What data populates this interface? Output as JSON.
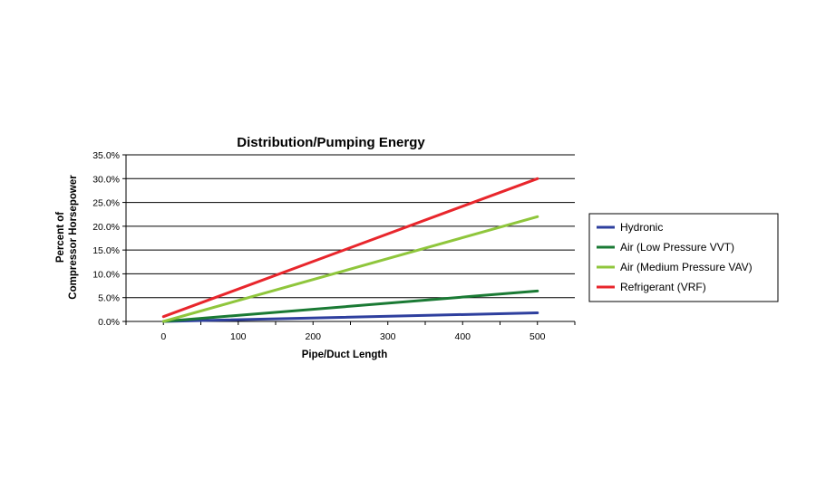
{
  "chart_data": {
    "type": "line",
    "title": "Distribution/Pumping Energy",
    "xlabel": "Pipe/Duct Length",
    "ylabel_lines": [
      "Percent of",
      "Compressor Horsepower"
    ],
    "xlim": [
      -50,
      550
    ],
    "ylim": [
      0,
      35
    ],
    "x_ticks": [
      "0",
      "100",
      "200",
      "300",
      "400",
      "500"
    ],
    "x_tick_values": [
      0,
      100,
      200,
      300,
      400,
      500
    ],
    "y_ticks": [
      "0.0%",
      "5.0%",
      "10.0%",
      "15.0%",
      "20.0%",
      "25.0%",
      "30.0%",
      "35.0%"
    ],
    "y_tick_values": [
      0,
      5,
      10,
      15,
      20,
      25,
      30,
      35
    ],
    "grid": "horizontal",
    "legend_position": "right",
    "series": [
      {
        "name": "Hydronic",
        "color": "#2e3f9e",
        "x": [
          0,
          500
        ],
        "y": [
          0.0,
          1.8
        ]
      },
      {
        "name": "Air (Low Pressure VVT)",
        "color": "#1a7a34",
        "x": [
          0,
          500
        ],
        "y": [
          0.0,
          6.4
        ]
      },
      {
        "name": "Air (Medium Pressure VAV)",
        "color": "#8fc63c",
        "x": [
          0,
          500
        ],
        "y": [
          0.0,
          22.0
        ]
      },
      {
        "name": "Refrigerant (VRF)",
        "color": "#e8262c",
        "x": [
          0,
          500
        ],
        "y": [
          1.0,
          30.0
        ]
      }
    ]
  }
}
